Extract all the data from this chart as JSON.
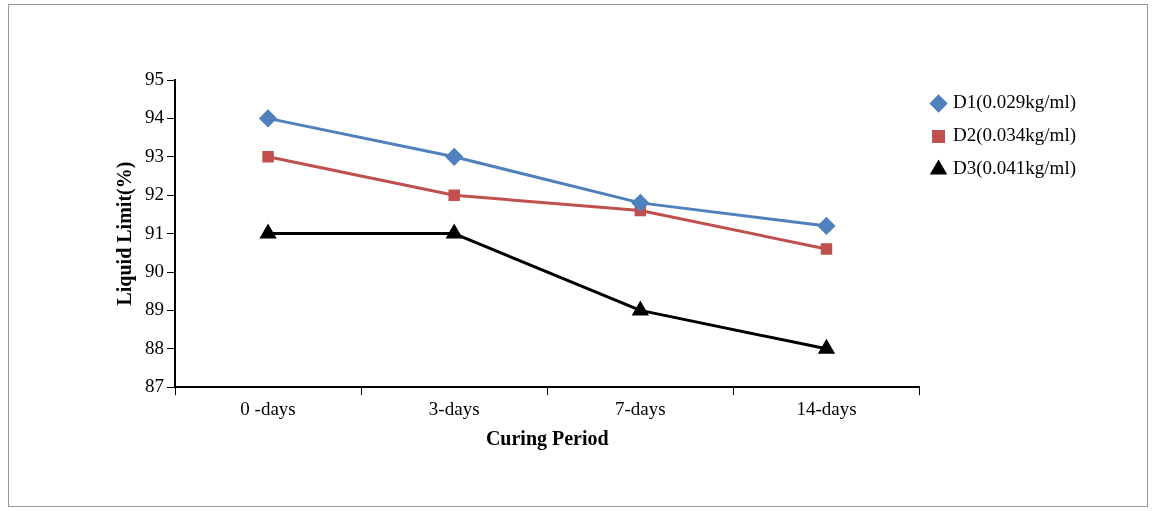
{
  "chart_data": {
    "type": "line",
    "xlabel": "Curing Period",
    "ylabel": "Liquid Limit(%)",
    "categories": [
      "0 -days",
      "3-days",
      "7-days",
      "14-days"
    ],
    "series": [
      {
        "name": "D1(0.029kg/ml)",
        "color": "#4f81bd",
        "marker": "diamond",
        "values": [
          94,
          93,
          91.8,
          91.2
        ]
      },
      {
        "name": "D2(0.034kg/ml)",
        "color": "#c0504d",
        "marker": "square",
        "values": [
          93,
          92,
          91.6,
          90.6
        ]
      },
      {
        "name": "D3(0.041kg/ml)",
        "color": "#000000",
        "marker": "triangle",
        "values": [
          91,
          91,
          89,
          88
        ]
      }
    ],
    "ylim": [
      87,
      95
    ],
    "yticks": [
      87,
      88,
      89,
      90,
      91,
      92,
      93,
      94,
      95
    ],
    "grid": false,
    "legend": "top right",
    "line_style": "solid"
  }
}
